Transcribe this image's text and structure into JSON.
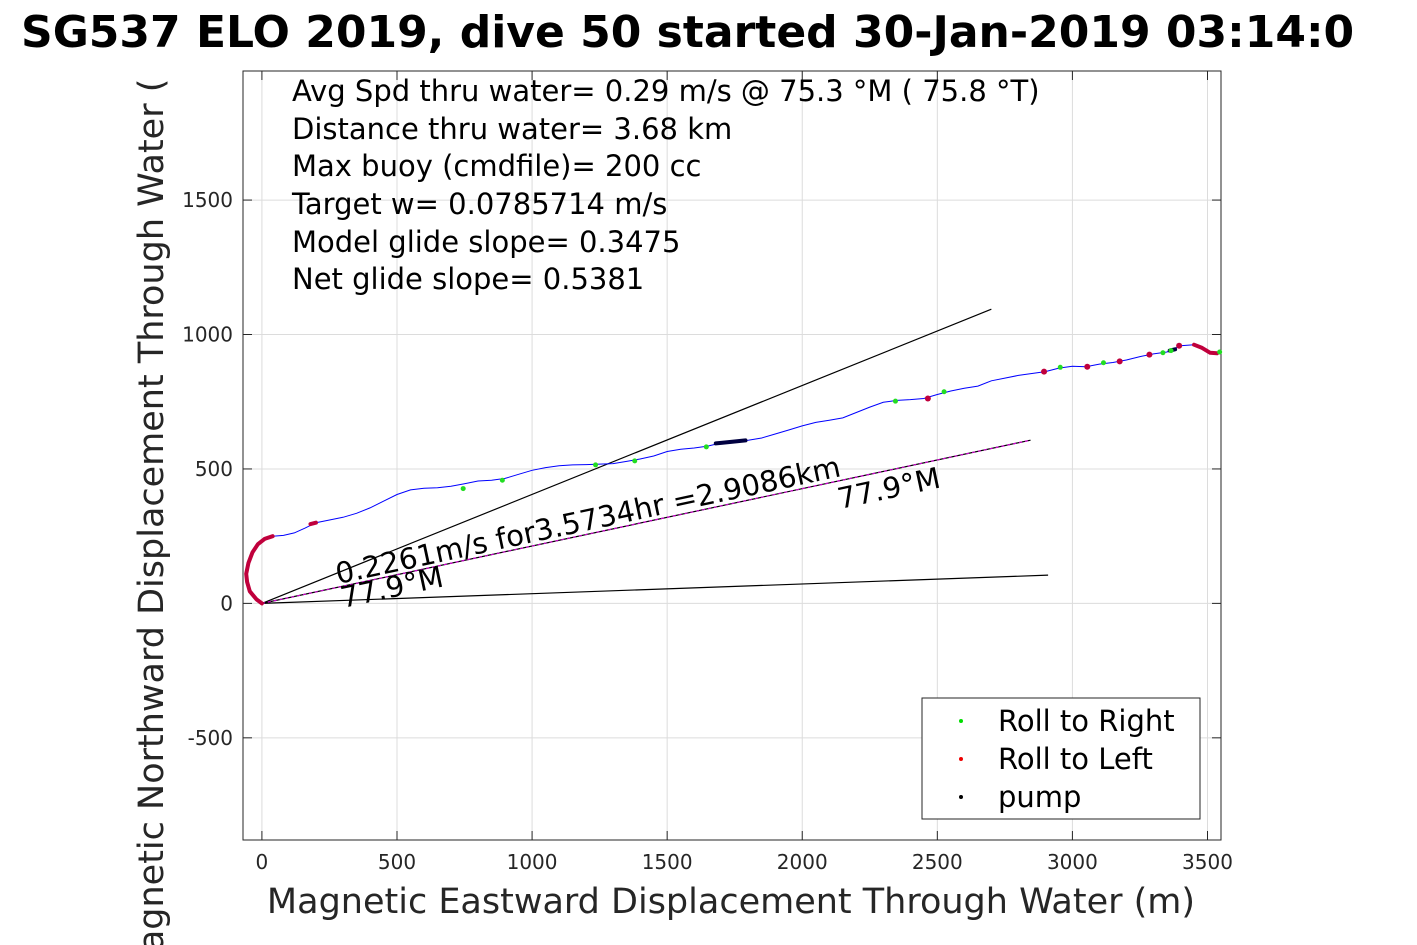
{
  "chart_data": {
    "type": "scatter",
    "title": "SG537 ELO 2019, dive 50 started 30-Jan-2019 03:14:0",
    "xlabel": "Magnetic Eastward Displacement Through Water (m)",
    "ylabel": "Magnetic Northward Displacement Through Water (",
    "xlim": [
      -70,
      3550
    ],
    "ylim": [
      -880,
      1980
    ],
    "xticks": [
      0,
      500,
      1000,
      1500,
      2000,
      2500,
      3000,
      3500
    ],
    "yticks": [
      -500,
      0,
      500,
      1000,
      1500
    ],
    "grid": true,
    "legend_position": "bottom-right",
    "annotations": [
      "Avg Spd thru water=  0.29 m/s @  75.3 °M ( 75.8 °T)",
      "Distance thru water=  3.68 km",
      "Max buoy (cmdfile)= 200 cc",
      "Target w= 0.0785714 m/s",
      "Model glide slope= 0.3475",
      "Net glide slope= 0.5381"
    ],
    "plot_labels": {
      "speed": "0.2261m/s for3.5734hr =2.9086km",
      "heading_far": "77.9°M",
      "heading_near": "77.9°M"
    },
    "legend": [
      {
        "label": "Roll to Right",
        "color": "#00dd00"
      },
      {
        "label": "Roll to Left",
        "color": "#ee0000"
      },
      {
        "label": "pump",
        "color": "#000000"
      }
    ],
    "track_color": "#0000ff",
    "roll_left_color": "#c0003c",
    "roll_right_color": "#22dd22",
    "pump_color": "#000040",
    "heading_line_color": "#cc00cc",
    "track": [
      [
        0,
        0
      ],
      [
        -20,
        15
      ],
      [
        -45,
        45
      ],
      [
        -55,
        80
      ],
      [
        -58,
        110
      ],
      [
        -50,
        150
      ],
      [
        -35,
        190
      ],
      [
        -15,
        220
      ],
      [
        10,
        240
      ],
      [
        40,
        250
      ],
      [
        80,
        253
      ],
      [
        120,
        262
      ],
      [
        160,
        280
      ],
      [
        200,
        300
      ],
      [
        250,
        310
      ],
      [
        300,
        320
      ],
      [
        350,
        335
      ],
      [
        400,
        355
      ],
      [
        450,
        380
      ],
      [
        500,
        405
      ],
      [
        550,
        422
      ],
      [
        600,
        428
      ],
      [
        650,
        430
      ],
      [
        700,
        436
      ],
      [
        750,
        445
      ],
      [
        800,
        455
      ],
      [
        850,
        458
      ],
      [
        900,
        465
      ],
      [
        950,
        480
      ],
      [
        1000,
        495
      ],
      [
        1050,
        505
      ],
      [
        1100,
        512
      ],
      [
        1150,
        515
      ],
      [
        1200,
        516
      ],
      [
        1250,
        518
      ],
      [
        1300,
        520
      ],
      [
        1350,
        528
      ],
      [
        1400,
        537
      ],
      [
        1450,
        548
      ],
      [
        1500,
        565
      ],
      [
        1550,
        573
      ],
      [
        1600,
        578
      ],
      [
        1650,
        585
      ],
      [
        1700,
        597
      ],
      [
        1750,
        602
      ],
      [
        1800,
        607
      ],
      [
        1850,
        615
      ],
      [
        1900,
        630
      ],
      [
        1950,
        645
      ],
      [
        2000,
        660
      ],
      [
        2050,
        673
      ],
      [
        2100,
        681
      ],
      [
        2150,
        690
      ],
      [
        2200,
        710
      ],
      [
        2250,
        730
      ],
      [
        2300,
        748
      ],
      [
        2350,
        755
      ],
      [
        2400,
        758
      ],
      [
        2450,
        762
      ],
      [
        2500,
        777
      ],
      [
        2550,
        790
      ],
      [
        2600,
        800
      ],
      [
        2650,
        808
      ],
      [
        2700,
        828
      ],
      [
        2750,
        838
      ],
      [
        2800,
        848
      ],
      [
        2850,
        855
      ],
      [
        2900,
        862
      ],
      [
        2950,
        875
      ],
      [
        3000,
        882
      ],
      [
        3050,
        880
      ],
      [
        3100,
        890
      ],
      [
        3150,
        896
      ],
      [
        3200,
        905
      ],
      [
        3250,
        918
      ],
      [
        3300,
        928
      ],
      [
        3350,
        935
      ],
      [
        3400,
        958
      ],
      [
        3450,
        962
      ],
      [
        3480,
        950
      ],
      [
        3510,
        932
      ],
      [
        3535,
        930
      ],
      [
        3550,
        935
      ]
    ],
    "roll_left_segments": [
      [
        [
          0,
          0
        ],
        [
          -20,
          15
        ],
        [
          -45,
          45
        ],
        [
          -55,
          80
        ],
        [
          -58,
          110
        ],
        [
          -50,
          150
        ],
        [
          -35,
          190
        ],
        [
          -15,
          220
        ],
        [
          10,
          240
        ],
        [
          40,
          250
        ]
      ],
      [
        [
          180,
          295
        ],
        [
          200,
          300
        ]
      ],
      [
        [
          3450,
          962
        ],
        [
          3480,
          950
        ],
        [
          3510,
          932
        ],
        [
          3535,
          930
        ]
      ]
    ],
    "roll_left_points": [
      [
        2465,
        762
      ],
      [
        2895,
        862
      ],
      [
        3055,
        880
      ],
      [
        3175,
        900
      ],
      [
        3285,
        925
      ],
      [
        3395,
        958
      ]
    ],
    "roll_right_points": [
      [
        745,
        427
      ],
      [
        890,
        458
      ],
      [
        1235,
        515
      ],
      [
        1380,
        530
      ],
      [
        1645,
        582
      ],
      [
        2345,
        752
      ],
      [
        2525,
        787
      ],
      [
        2955,
        878
      ],
      [
        3115,
        895
      ],
      [
        3335,
        932
      ],
      [
        3365,
        940
      ],
      [
        3545,
        935
      ]
    ],
    "pump_segments": [
      [
        [
          1680,
          595
        ],
        [
          1700,
          597
        ],
        [
          1750,
          602
        ],
        [
          1790,
          606
        ]
      ],
      [
        [
          3360,
          940
        ],
        [
          3380,
          945
        ]
      ]
    ],
    "lines": [
      {
        "name": "model-glide-upper",
        "x": [
          0,
          2700
        ],
        "y": [
          0,
          1094
        ],
        "color": "#000000"
      },
      {
        "name": "model-glide-lower",
        "x": [
          0,
          2910
        ],
        "y": [
          0,
          105
        ],
        "color": "#000000"
      },
      {
        "name": "net-heading",
        "x": [
          0,
          2845
        ],
        "y": [
          0,
          607
        ],
        "color": "#000000"
      }
    ]
  }
}
